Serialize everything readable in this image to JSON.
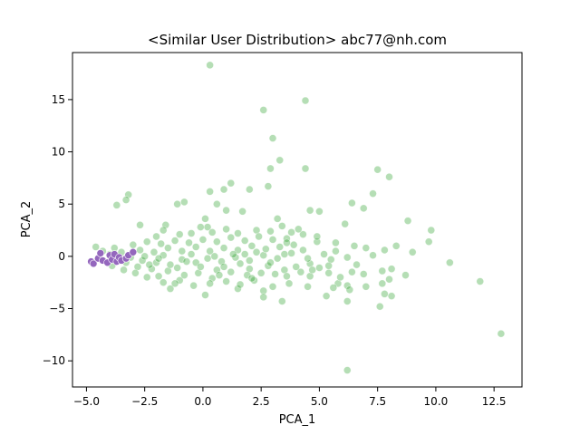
{
  "chart_data": {
    "type": "scatter",
    "title": "<Similar User Distribution> abc77@nh.com",
    "xlabel": "PCA_1",
    "ylabel": "PCA_2",
    "xlim": [
      -5.6,
      13.7
    ],
    "ylim": [
      -12.5,
      19.5
    ],
    "xticks": [
      -5.0,
      -2.5,
      0.0,
      2.5,
      5.0,
      7.5,
      10.0,
      12.5
    ],
    "xtick_labels": [
      "−5.0",
      "−2.5",
      "0.0",
      "2.5",
      "5.0",
      "7.5",
      "10.0",
      "12.5"
    ],
    "yticks": [
      -10,
      -5,
      0,
      5,
      10,
      15
    ],
    "ytick_labels": [
      "−10",
      "−5",
      "0",
      "5",
      "10",
      "15"
    ],
    "grid": false,
    "series": [
      {
        "color": "#2ca02c",
        "opacity": 0.35,
        "points": [
          [
            0.3,
            18.3
          ],
          [
            4.4,
            14.9
          ],
          [
            2.6,
            14.0
          ],
          [
            3.0,
            11.3
          ],
          [
            3.3,
            9.2
          ],
          [
            2.9,
            8.4
          ],
          [
            4.4,
            8.4
          ],
          [
            7.5,
            8.3
          ],
          [
            8.0,
            7.6
          ],
          [
            1.2,
            7.0
          ],
          [
            2.8,
            6.7
          ],
          [
            0.9,
            6.4
          ],
          [
            2.0,
            6.4
          ],
          [
            0.3,
            6.2
          ],
          [
            7.3,
            6.0
          ],
          [
            6.4,
            5.1
          ],
          [
            -0.8,
            5.2
          ],
          [
            -1.1,
            5.0
          ],
          [
            0.6,
            5.0
          ],
          [
            -3.2,
            5.9
          ],
          [
            -3.3,
            5.4
          ],
          [
            -3.7,
            4.9
          ],
          [
            1.0,
            4.4
          ],
          [
            1.7,
            4.3
          ],
          [
            4.6,
            4.4
          ],
          [
            5.0,
            4.3
          ],
          [
            6.9,
            4.6
          ],
          [
            8.8,
            3.4
          ],
          [
            9.8,
            2.5
          ],
          [
            6.1,
            3.1
          ],
          [
            -2.7,
            3.0
          ],
          [
            -1.6,
            3.0
          ],
          [
            -1.7,
            2.5
          ],
          [
            0.1,
            3.6
          ],
          [
            0.2,
            2.8
          ],
          [
            2.3,
            2.5
          ],
          [
            3.8,
            2.3
          ],
          [
            4.3,
            2.1
          ],
          [
            4.9,
            1.4
          ],
          [
            5.7,
            1.3
          ],
          [
            6.5,
            1.0
          ],
          [
            7.0,
            0.8
          ],
          [
            7.8,
            0.6
          ],
          [
            8.3,
            1.0
          ],
          [
            9.7,
            1.4
          ],
          [
            9.0,
            0.4
          ],
          [
            10.6,
            -0.6
          ],
          [
            7.3,
            0.1
          ],
          [
            6.2,
            -0.1
          ],
          [
            5.5,
            -0.3
          ],
          [
            5.0,
            -1.1
          ],
          [
            5.4,
            -1.6
          ],
          [
            4.6,
            -1.9
          ],
          [
            6.4,
            -1.5
          ],
          [
            6.9,
            -1.7
          ],
          [
            7.7,
            -1.4
          ],
          [
            8.1,
            -1.2
          ],
          [
            8.7,
            -1.8
          ],
          [
            8.0,
            -2.2
          ],
          [
            7.7,
            -2.6
          ],
          [
            7.0,
            -2.9
          ],
          [
            6.2,
            -2.8
          ],
          [
            5.8,
            -2.6
          ],
          [
            5.6,
            -3.0
          ],
          [
            6.3,
            -3.2
          ],
          [
            7.8,
            -3.6
          ],
          [
            8.1,
            -3.8
          ],
          [
            7.6,
            -4.8
          ],
          [
            6.2,
            -4.3
          ],
          [
            5.3,
            -3.8
          ],
          [
            4.5,
            -2.9
          ],
          [
            3.4,
            -4.3
          ],
          [
            2.6,
            -3.3
          ],
          [
            2.6,
            -3.9
          ],
          [
            1.5,
            -3.1
          ],
          [
            0.1,
            -3.7
          ],
          [
            -1.4,
            -3.1
          ],
          [
            11.9,
            -2.4
          ],
          [
            12.8,
            -7.4
          ],
          [
            6.2,
            -10.9
          ],
          [
            -1.7,
            -2.5
          ],
          [
            -1.0,
            -2.3
          ],
          [
            0.4,
            -2.1
          ],
          [
            1.6,
            -2.7
          ],
          [
            2.2,
            -2.3
          ],
          [
            3.7,
            -2.6
          ],
          [
            3.0,
            -2.9
          ],
          [
            4.2,
            -1.5
          ],
          [
            3.5,
            -1.3
          ],
          [
            2.8,
            -0.9
          ],
          [
            2.0,
            -1.2
          ],
          [
            1.2,
            -1.5
          ],
          [
            0.6,
            -1.3
          ],
          [
            -0.2,
            -1.6
          ],
          [
            -0.8,
            -1.8
          ],
          [
            -1.5,
            -1.4
          ],
          [
            -2.2,
            -1.2
          ],
          [
            -2.8,
            -1.0
          ],
          [
            -3.3,
            -0.6
          ],
          [
            -3.6,
            -0.3
          ],
          [
            -3.1,
            -0.1
          ],
          [
            -2.6,
            -0.4
          ],
          [
            -2.0,
            -0.6
          ],
          [
            -1.4,
            -0.8
          ],
          [
            -0.9,
            -0.3
          ],
          [
            -0.3,
            -0.6
          ],
          [
            0.2,
            -0.2
          ],
          [
            0.8,
            -0.5
          ],
          [
            1.4,
            -0.1
          ],
          [
            2.0,
            -0.4
          ],
          [
            2.6,
            0.1
          ],
          [
            3.2,
            -0.2
          ],
          [
            3.8,
            0.3
          ],
          [
            4.3,
            0.6
          ],
          [
            3.9,
            1.1
          ],
          [
            3.3,
            0.9
          ],
          [
            2.7,
            0.7
          ],
          [
            2.1,
            1.0
          ],
          [
            1.5,
            0.6
          ],
          [
            0.9,
            0.8
          ],
          [
            0.3,
            0.5
          ],
          [
            -0.3,
            0.9
          ],
          [
            -0.9,
            0.5
          ],
          [
            -1.5,
            0.8
          ],
          [
            -2.1,
            0.4
          ],
          [
            -2.7,
            0.6
          ],
          [
            -3.0,
            1.1
          ],
          [
            -2.4,
            1.4
          ],
          [
            -1.8,
            1.2
          ],
          [
            -1.2,
            1.5
          ],
          [
            -0.6,
            1.3
          ],
          [
            0.0,
            1.6
          ],
          [
            0.6,
            1.4
          ],
          [
            1.2,
            1.8
          ],
          [
            1.8,
            1.5
          ],
          [
            2.4,
            1.9
          ],
          [
            3.0,
            1.6
          ],
          [
            3.6,
            1.7
          ],
          [
            4.1,
            2.6
          ],
          [
            3.4,
            2.9
          ],
          [
            2.9,
            2.4
          ],
          [
            -4.6,
            0.9
          ],
          [
            -4.3,
            0.5
          ],
          [
            -4.0,
            0.2
          ],
          [
            -3.8,
            0.8
          ],
          [
            -3.9,
            -0.9
          ],
          [
            -3.4,
            -1.3
          ],
          [
            -2.9,
            -1.6
          ],
          [
            -2.4,
            -2.0
          ],
          [
            -1.9,
            -1.9
          ],
          [
            -1.2,
            -2.6
          ],
          [
            -0.4,
            -2.8
          ],
          [
            0.3,
            -2.6
          ],
          [
            1.0,
            -2.4
          ],
          [
            1.9,
            -1.8
          ],
          [
            2.5,
            -1.6
          ],
          [
            3.1,
            -1.7
          ],
          [
            3.6,
            -1.9
          ],
          [
            4.0,
            -1.0
          ],
          [
            4.6,
            -0.7
          ],
          [
            5.2,
            0.2
          ],
          [
            5.7,
            0.5
          ],
          [
            4.9,
            1.9
          ],
          [
            4.5,
            -0.2
          ],
          [
            -2.5,
            0.0
          ],
          [
            -1.7,
            0.1
          ],
          [
            -0.5,
            0.2
          ],
          [
            0.5,
            0.0
          ],
          [
            1.6,
            -0.7
          ],
          [
            2.3,
            0.4
          ],
          [
            2.9,
            -0.6
          ],
          [
            3.5,
            0.2
          ],
          [
            -1.1,
            -1.1
          ],
          [
            -0.1,
            -1.0
          ],
          [
            0.9,
            -1.0
          ],
          [
            1.8,
            0.2
          ],
          [
            -2.3,
            -0.8
          ],
          [
            -3.5,
            0.4
          ],
          [
            -1.9,
            -0.2
          ],
          [
            -0.7,
            -0.5
          ],
          [
            0.7,
            -1.8
          ],
          [
            1.3,
            0.2
          ],
          [
            2.1,
            -2.1
          ],
          [
            -0.5,
            2.2
          ],
          [
            0.4,
            2.3
          ],
          [
            1.0,
            2.6
          ],
          [
            1.5,
            2.2
          ],
          [
            -1.0,
            2.1
          ],
          [
            -2.0,
            1.9
          ],
          [
            -0.1,
            2.8
          ],
          [
            3.2,
            3.6
          ],
          [
            3.6,
            1.3
          ],
          [
            4.7,
            -1.3
          ],
          [
            5.4,
            -0.9
          ],
          [
            5.9,
            -2.0
          ],
          [
            6.6,
            -0.8
          ]
        ]
      },
      {
        "color": "#9467bd",
        "opacity": 1,
        "points": [
          [
            -4.8,
            -0.5
          ],
          [
            -4.7,
            -0.7
          ],
          [
            -4.5,
            -0.2
          ],
          [
            -4.4,
            0.3
          ],
          [
            -4.3,
            -0.4
          ],
          [
            -4.1,
            -0.6
          ],
          [
            -4.0,
            0.1
          ],
          [
            -3.9,
            -0.3
          ],
          [
            -3.8,
            0.2
          ],
          [
            -3.7,
            -0.5
          ],
          [
            -3.6,
            -0.1
          ],
          [
            -3.5,
            -0.4
          ],
          [
            -3.3,
            -0.2
          ],
          [
            -3.2,
            0.1
          ],
          [
            -3.0,
            0.4
          ]
        ]
      }
    ]
  }
}
